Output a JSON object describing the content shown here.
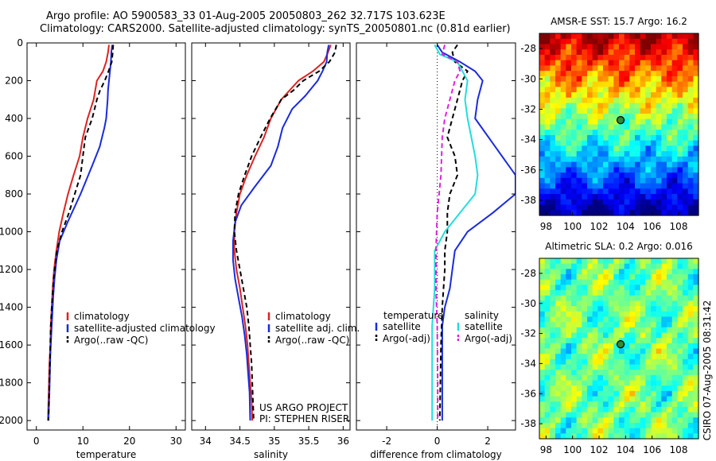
{
  "header": {
    "line1": "Argo profile: AO 5900583_33 01-Aug-2005 20050803_262 32.717S 103.623E",
    "line2": "Climatology: CARS2000. Satellite-adjusted climatology: synTS_20050801.nc (0.81d earlier)"
  },
  "footer": {
    "credit1": "US ARGO PROJECT",
    "credit2": "PI: STEPHEN RISER",
    "stamp": "CSIRO 07-Aug-2005 08:31:42"
  },
  "colors": {
    "climatology": "#dd2222",
    "satellite": "#1a2bdd",
    "argo": "#000000",
    "salinity_satellite": "#22dddd",
    "salinity_argo": "#dd22dd"
  },
  "chart_data": [
    {
      "type": "line",
      "xlabel": "temperature",
      "ylabel": "",
      "xlim": [
        -2,
        32
      ],
      "ylim": [
        2050,
        0
      ],
      "xticks": [
        0,
        10,
        20,
        30
      ],
      "yticks": [
        0,
        200,
        400,
        600,
        800,
        1000,
        1200,
        1400,
        1600,
        1800,
        2000
      ],
      "legend": [
        "climatology",
        "satellite-adjusted climatology",
        "Argo(..raw -QC)"
      ],
      "series": [
        {
          "name": "climatology",
          "color": "#dd2222",
          "dash": "",
          "points": [
            [
              15.6,
              10
            ],
            [
              15.4,
              50
            ],
            [
              15.0,
              100
            ],
            [
              14.3,
              150
            ],
            [
              13.0,
              200
            ],
            [
              12.3,
              300
            ],
            [
              11.0,
              400
            ],
            [
              10.0,
              500
            ],
            [
              9.3,
              600
            ],
            [
              8.0,
              700
            ],
            [
              6.8,
              800
            ],
            [
              5.8,
              900
            ],
            [
              4.9,
              1000
            ],
            [
              4.3,
              1100
            ],
            [
              3.8,
              1200
            ],
            [
              3.5,
              1300
            ],
            [
              3.3,
              1400
            ],
            [
              3.1,
              1500
            ],
            [
              3.0,
              1600
            ],
            [
              2.8,
              1700
            ],
            [
              2.7,
              1800
            ],
            [
              2.6,
              1900
            ],
            [
              2.5,
              2000
            ]
          ]
        },
        {
          "name": "satellite-adjusted climatology",
          "color": "#1a2bdd",
          "dash": "",
          "points": [
            [
              16.3,
              10
            ],
            [
              16.1,
              50
            ],
            [
              16.0,
              100
            ],
            [
              15.8,
              150
            ],
            [
              15.6,
              200
            ],
            [
              15.4,
              250
            ],
            [
              15.3,
              300
            ],
            [
              15.0,
              400
            ],
            [
              14.6,
              450
            ],
            [
              13.6,
              550
            ],
            [
              12.0,
              650
            ],
            [
              9.5,
              800
            ],
            [
              6.7,
              950
            ],
            [
              5.0,
              1050
            ],
            [
              4.3,
              1150
            ],
            [
              3.9,
              1250
            ],
            [
              3.6,
              1350
            ],
            [
              3.4,
              1450
            ],
            [
              3.2,
              1550
            ],
            [
              3.0,
              1650
            ],
            [
              2.9,
              1750
            ],
            [
              2.8,
              1850
            ],
            [
              2.6,
              2000
            ]
          ]
        },
        {
          "name": "Argo(..raw -QC)",
          "color": "#000000",
          "dash": "6,4",
          "points": [
            [
              16.5,
              10
            ],
            [
              16.4,
              50
            ],
            [
              16.2,
              100
            ],
            [
              15.5,
              150
            ],
            [
              14.7,
              200
            ],
            [
              13.7,
              250
            ],
            [
              13.0,
              300
            ],
            [
              12.0,
              400
            ],
            [
              10.5,
              500
            ],
            [
              10.0,
              600
            ],
            [
              9.5,
              700
            ],
            [
              8.0,
              820
            ],
            [
              7.0,
              900
            ],
            [
              5.5,
              1000
            ],
            [
              4.4,
              1100
            ],
            [
              3.7,
              1250
            ],
            [
              3.3,
              1400
            ],
            [
              3.1,
              1500
            ],
            [
              2.9,
              1700
            ],
            [
              2.7,
              1900
            ],
            [
              2.6,
              2000
            ]
          ]
        }
      ]
    },
    {
      "type": "line",
      "xlabel": "salinity",
      "ylabel": "",
      "xlim": [
        33.8,
        36.1
      ],
      "ylim": [
        2050,
        0
      ],
      "xticks": [
        34,
        34.5,
        35,
        35.5,
        36
      ],
      "yticks": [],
      "legend": [
        "climatology",
        "satellite adj. clim.",
        "Argo(..raw -QC)"
      ],
      "series": [
        {
          "name": "climatology",
          "color": "#dd2222",
          "dash": "",
          "points": [
            [
              35.82,
              10
            ],
            [
              35.78,
              50
            ],
            [
              35.72,
              100
            ],
            [
              35.56,
              150
            ],
            [
              35.35,
              200
            ],
            [
              35.1,
              300
            ],
            [
              34.95,
              400
            ],
            [
              34.85,
              500
            ],
            [
              34.72,
              600
            ],
            [
              34.6,
              700
            ],
            [
              34.5,
              800
            ],
            [
              34.45,
              900
            ],
            [
              34.42,
              1000
            ],
            [
              34.42,
              1100
            ],
            [
              34.45,
              1200
            ],
            [
              34.5,
              1300
            ],
            [
              34.54,
              1400
            ],
            [
              34.58,
              1500
            ],
            [
              34.61,
              1600
            ],
            [
              34.63,
              1700
            ],
            [
              34.65,
              1800
            ],
            [
              34.67,
              1900
            ],
            [
              34.68,
              2000
            ]
          ]
        },
        {
          "name": "satellite adj. clim.",
          "color": "#1a2bdd",
          "dash": "",
          "points": [
            [
              35.79,
              10
            ],
            [
              35.77,
              50
            ],
            [
              35.76,
              100
            ],
            [
              35.7,
              150
            ],
            [
              35.63,
              200
            ],
            [
              35.45,
              280
            ],
            [
              35.26,
              350
            ],
            [
              35.12,
              450
            ],
            [
              35.05,
              550
            ],
            [
              34.95,
              650
            ],
            [
              34.72,
              760
            ],
            [
              34.52,
              860
            ],
            [
              34.43,
              950
            ],
            [
              34.4,
              1050
            ],
            [
              34.4,
              1150
            ],
            [
              34.43,
              1250
            ],
            [
              34.48,
              1350
            ],
            [
              34.53,
              1450
            ],
            [
              34.57,
              1550
            ],
            [
              34.6,
              1650
            ],
            [
              34.62,
              1750
            ],
            [
              34.64,
              1850
            ],
            [
              34.65,
              2000
            ]
          ]
        },
        {
          "name": "Argo(..raw -QC)",
          "color": "#000000",
          "dash": "6,4",
          "points": [
            [
              35.9,
              10
            ],
            [
              35.88,
              50
            ],
            [
              35.8,
              100
            ],
            [
              35.65,
              150
            ],
            [
              35.42,
              200
            ],
            [
              35.28,
              250
            ],
            [
              35.1,
              300
            ],
            [
              34.94,
              400
            ],
            [
              34.8,
              500
            ],
            [
              34.67,
              600
            ],
            [
              34.57,
              700
            ],
            [
              34.48,
              800
            ],
            [
              34.43,
              900
            ],
            [
              34.42,
              1000
            ],
            [
              34.45,
              1100
            ],
            [
              34.5,
              1200
            ],
            [
              34.55,
              1300
            ],
            [
              34.6,
              1400
            ],
            [
              34.63,
              1500
            ],
            [
              34.65,
              1600
            ],
            [
              34.67,
              1700
            ],
            [
              34.68,
              1800
            ],
            [
              34.69,
              1900
            ],
            [
              34.7,
              2000
            ]
          ]
        }
      ]
    },
    {
      "type": "line",
      "xlabel": "difference from climatology",
      "ylabel": "",
      "xlim": [
        -3.2,
        3.1
      ],
      "ylim": [
        2050,
        0
      ],
      "xticks": [
        -2,
        0,
        2
      ],
      "yticks": [],
      "legend_groups": {
        "temperature": [
          "satellite",
          "Argo(-adj)"
        ],
        "salinity": [
          "satellite",
          "Argo(-adj)"
        ]
      },
      "series": [
        {
          "name": "temperature satellite",
          "color": "#1a2bdd",
          "dash": "",
          "points": [
            [
              0.0,
              10
            ],
            [
              0.2,
              50
            ],
            [
              0.9,
              100
            ],
            [
              1.5,
              150
            ],
            [
              1.8,
              200
            ],
            [
              1.6,
              300
            ],
            [
              1.5,
              400
            ],
            [
              2.3,
              550
            ],
            [
              3.1,
              700
            ],
            [
              3.1,
              800
            ],
            [
              2.2,
              900
            ],
            [
              1.2,
              1000
            ],
            [
              0.7,
              1100
            ],
            [
              0.6,
              1200
            ],
            [
              0.5,
              1300
            ],
            [
              0.3,
              1400
            ],
            [
              0.2,
              1500
            ],
            [
              0.2,
              1700
            ],
            [
              0.2,
              2000
            ]
          ]
        },
        {
          "name": "temperature Argo(-adj)",
          "color": "#000000",
          "dash": "6,4",
          "points": [
            [
              0.8,
              10
            ],
            [
              0.6,
              50
            ],
            [
              0.7,
              100
            ],
            [
              1.2,
              150
            ],
            [
              1.0,
              200
            ],
            [
              0.8,
              300
            ],
            [
              0.6,
              400
            ],
            [
              0.4,
              500
            ],
            [
              0.7,
              600
            ],
            [
              0.8,
              700
            ],
            [
              0.5,
              800
            ],
            [
              0.4,
              900
            ],
            [
              0.4,
              1000
            ],
            [
              0.3,
              1100
            ],
            [
              0.3,
              1200
            ],
            [
              0.2,
              1400
            ],
            [
              0.15,
              1600
            ],
            [
              0.1,
              2000
            ]
          ]
        },
        {
          "name": "salinity satellite",
          "color": "#22dddd",
          "dash": "",
          "points": [
            [
              -0.1,
              10
            ],
            [
              0.1,
              60
            ],
            [
              0.8,
              100
            ],
            [
              1.0,
              150
            ],
            [
              1.2,
              200
            ],
            [
              1.1,
              300
            ],
            [
              1.2,
              400
            ],
            [
              1.5,
              600
            ],
            [
              1.6,
              700
            ],
            [
              1.5,
              800
            ],
            [
              0.9,
              900
            ],
            [
              0.3,
              1000
            ],
            [
              -0.1,
              1100
            ],
            [
              -0.1,
              1300
            ],
            [
              -0.2,
              1500
            ],
            [
              -0.2,
              1800
            ],
            [
              -0.2,
              2000
            ]
          ]
        },
        {
          "name": "salinity Argo(-adj)",
          "color": "#dd22dd",
          "dash": "6,4",
          "points": [
            [
              0.3,
              10
            ],
            [
              0.2,
              60
            ],
            [
              0.8,
              100
            ],
            [
              0.9,
              150
            ],
            [
              0.7,
              200
            ],
            [
              0.5,
              300
            ],
            [
              0.3,
              400
            ],
            [
              0.2,
              500
            ],
            [
              0.15,
              700
            ],
            [
              0.0,
              900
            ],
            [
              -0.05,
              1100
            ],
            [
              -0.05,
              1300
            ],
            [
              0.0,
              1500
            ],
            [
              0.02,
              1800
            ],
            [
              0.02,
              2000
            ]
          ]
        }
      ]
    },
    {
      "type": "heatmap",
      "title": "AMSR-E SST: 15.7  Argo: 16.2",
      "xlim": [
        97.5,
        109.5
      ],
      "ylim": [
        -39,
        -27
      ],
      "xticks": [
        98,
        100,
        102,
        104,
        106,
        108
      ],
      "yticks": [
        -28,
        -30,
        -32,
        -34,
        -36,
        -38
      ],
      "marker": {
        "lon": 103.623,
        "lat": -32.717
      }
    },
    {
      "type": "heatmap",
      "title": "Altimetric SLA: 0.2  Argo: 0.016",
      "xlim": [
        97.5,
        109.5
      ],
      "ylim": [
        -39,
        -27
      ],
      "xticks": [
        98,
        100,
        102,
        104,
        106,
        108
      ],
      "yticks": [
        -28,
        -30,
        -32,
        -34,
        -36,
        -38
      ],
      "marker": {
        "lon": 103.623,
        "lat": -32.717
      }
    }
  ]
}
